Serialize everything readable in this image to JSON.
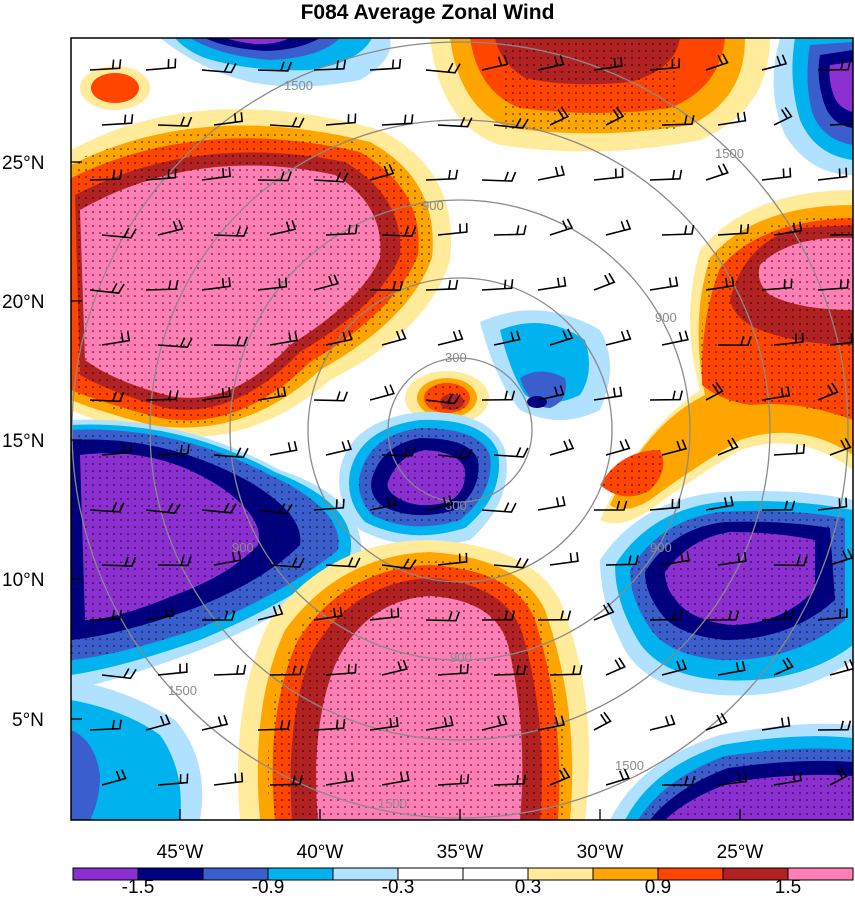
{
  "title": "F084 Average Zonal Wind",
  "map": {
    "lat_labels": [
      "25°N",
      "20°N",
      "15°N",
      "10°N",
      "5°N"
    ],
    "lon_labels": [
      "45°W",
      "40°W",
      "35°W",
      "30°W",
      "25°W"
    ],
    "range_ring_labels": [
      "300",
      "900",
      "1500"
    ]
  },
  "colorbar": {
    "colors": [
      "#8b2fd0",
      "#000080",
      "#3a5fcd",
      "#00b2ee",
      "#b0e2ff",
      "#ffffff",
      "#ffffff",
      "#ffeb99",
      "#ffa500",
      "#ff4500",
      "#b22222",
      "#ff7eb4"
    ],
    "labels": [
      "-1.5",
      "-0.9",
      "-0.3",
      "0.3",
      "0.9",
      "1.5"
    ]
  },
  "palette": {
    "pink": "#ff7eb4",
    "darkred": "#b22222",
    "orangered": "#ff4500",
    "orange": "#ffa500",
    "lightyellow": "#ffeb99",
    "white": "#ffffff",
    "lightblue": "#b0e2ff",
    "skyblue": "#00b2ee",
    "royalblue": "#3a5fcd",
    "navy": "#000080",
    "purple": "#8b2fd0"
  }
}
